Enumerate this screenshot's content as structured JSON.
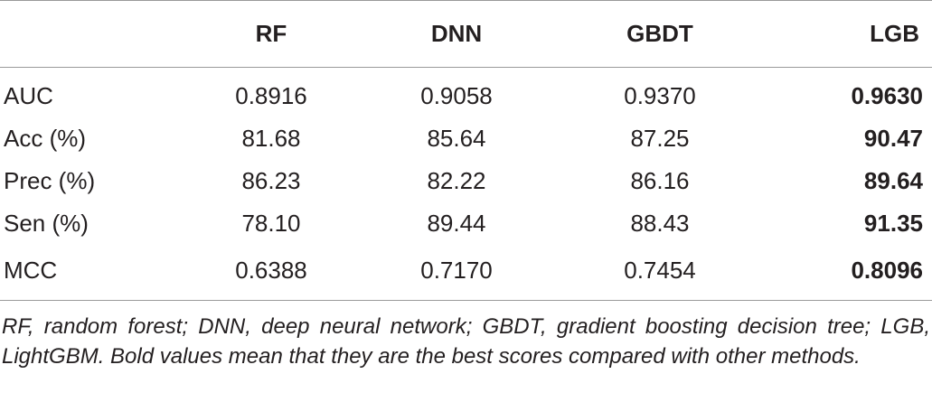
{
  "table": {
    "headers": [
      "",
      "RF",
      "DNN",
      "GBDT",
      "LGB"
    ],
    "rows": [
      {
        "metric": "AUC",
        "rf": "0.8916",
        "dnn": "0.9058",
        "gbdt": "0.9370",
        "lgb": "0.9630"
      },
      {
        "metric": "Acc (%)",
        "rf": "81.68",
        "dnn": "85.64",
        "gbdt": "87.25",
        "lgb": "90.47"
      },
      {
        "metric": "Prec (%)",
        "rf": "86.23",
        "dnn": "82.22",
        "gbdt": "86.16",
        "lgb": "89.64"
      },
      {
        "metric": "Sen (%)",
        "rf": "78.10",
        "dnn": "89.44",
        "gbdt": "88.43",
        "lgb": "91.35"
      },
      {
        "metric": "MCC",
        "rf": "0.6388",
        "dnn": "0.7170",
        "gbdt": "0.7454",
        "lgb": "0.8096"
      }
    ],
    "best_column": "LGB"
  },
  "footnote": "RF, random forest; DNN, deep neural network; GBDT, gradient boosting decision tree; LGB, LightGBM. Bold values mean that they are the best scores compared with other methods."
}
